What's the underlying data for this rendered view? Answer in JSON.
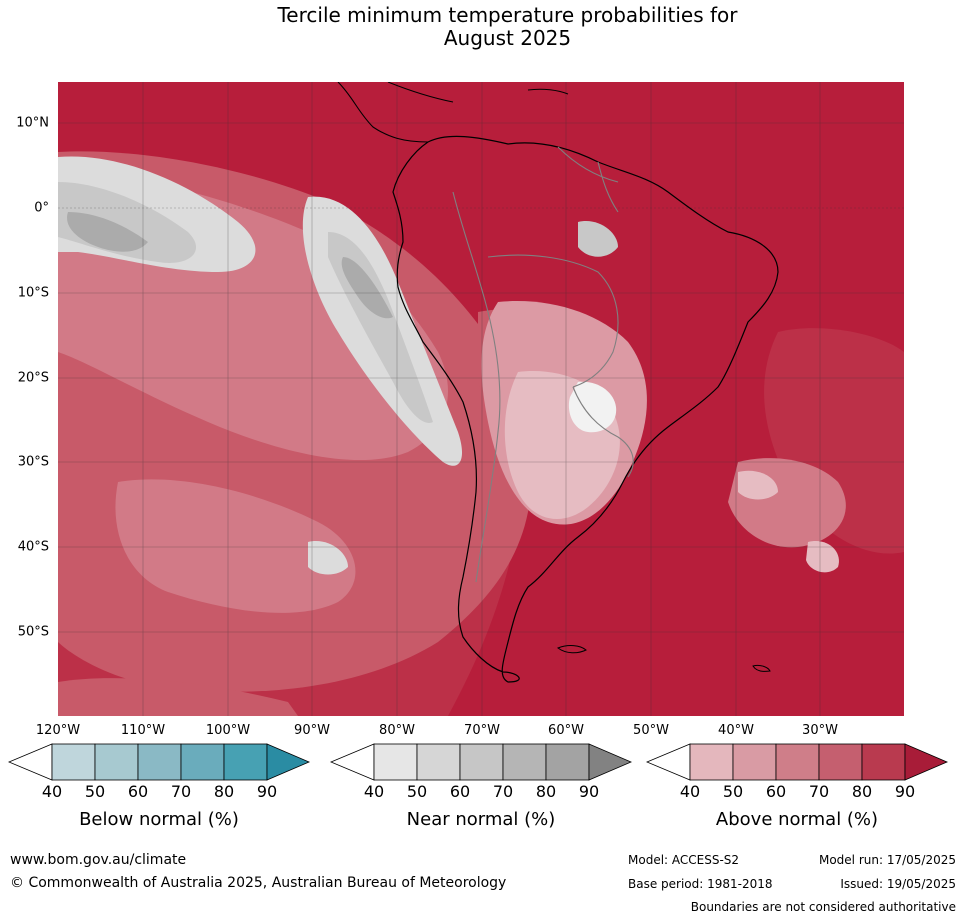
{
  "title_line1": "Tercile minimum temperature probabilities for",
  "title_line2": "August 2025",
  "latitude_labels": [
    "10°N",
    "0°",
    "10°S",
    "20°S",
    "30°S",
    "40°S",
    "50°S"
  ],
  "longitude_labels": [
    "120°W",
    "110°W",
    "100°W",
    "90°W",
    "80°W",
    "70°W",
    "60°W",
    "50°W",
    "40°W",
    "30°W"
  ],
  "legends": [
    {
      "caption": "Below normal (%)",
      "ticks": [
        "40",
        "50",
        "60",
        "70",
        "80",
        "90"
      ],
      "colors": [
        "#ffffff",
        "#bfd6dc",
        "#a7c9d0",
        "#8ab9c5",
        "#6aacbc",
        "#47a1b3",
        "#2a8ca3"
      ]
    },
    {
      "caption": "Near normal (%)",
      "ticks": [
        "40",
        "50",
        "60",
        "70",
        "80",
        "90"
      ],
      "colors": [
        "#ffffff",
        "#e6e6e6",
        "#d6d6d6",
        "#c6c6c6",
        "#b5b5b5",
        "#a3a3a3",
        "#828282"
      ]
    },
    {
      "caption": "Above normal (%)",
      "ticks": [
        "40",
        "50",
        "60",
        "70",
        "80",
        "90"
      ],
      "colors": [
        "#ffffff",
        "#e4b7bd",
        "#d99ba4",
        "#cf7e89",
        "#c55f6f",
        "#b93a4f",
        "#a81c38"
      ]
    }
  ],
  "footer": {
    "website": "www.bom.gov.au/climate",
    "copyright": "© Commonwealth of Australia 2025, Australian Bureau of Meteorology",
    "model": "Model: ACCESS-S2",
    "base_period": "Base period: 1981-2018",
    "model_run": "Model run: 17/05/2025",
    "issued": "Issued: 19/05/2025",
    "disclaimer": "Boundaries are not considered authoritative"
  },
  "map_colors": {
    "ocean_base": "#b71e3b",
    "above_80": "#bc3048",
    "above_70": "#c85a69",
    "above_60": "#d27a87",
    "above_50": "#dc9aa4",
    "above_40": "#e6bcc2",
    "neutral": "#f2f2f2",
    "near_50": "#dcdcdc",
    "near_60": "#c8c8c8",
    "near_80": "#ababab",
    "coastline": "#000000",
    "borders": "#808080"
  }
}
